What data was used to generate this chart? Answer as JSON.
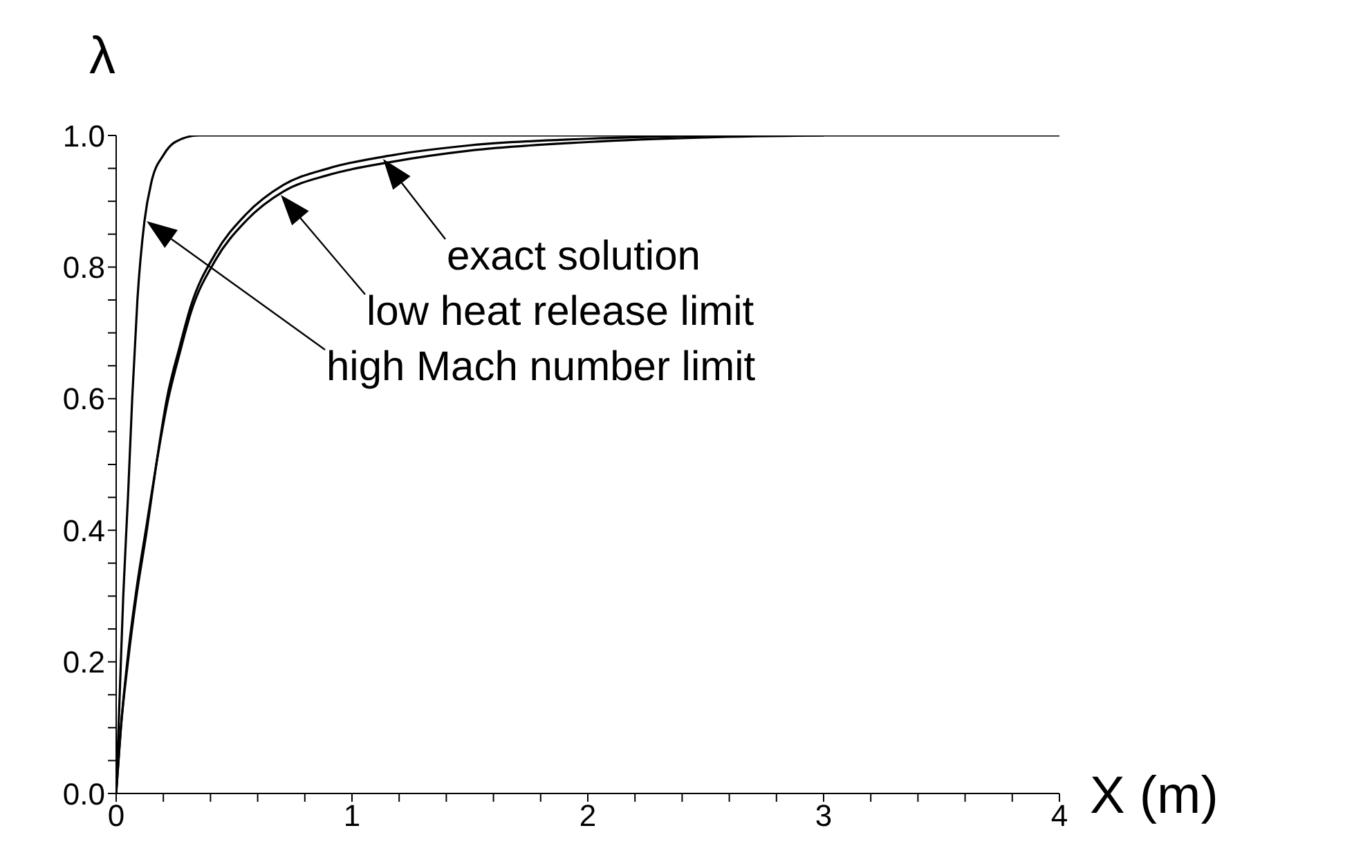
{
  "chart_data": {
    "type": "line",
    "xlabel": "X (m)",
    "ylabel": "λ",
    "xlim": [
      0,
      4
    ],
    "ylim": [
      0,
      1
    ],
    "xticks": [
      0,
      {
        "value": 0.2,
        "label": null
      },
      {
        "value": 0.4,
        "label": null
      },
      {
        "value": 0.6,
        "label": null
      },
      {
        "value": 0.8,
        "label": null
      },
      1,
      {
        "value": 1.2,
        "label": null
      },
      {
        "value": 1.4,
        "label": null
      },
      {
        "value": 1.6,
        "label": null
      },
      {
        "value": 1.8,
        "label": null
      },
      2,
      {
        "value": 2.2,
        "label": null
      },
      {
        "value": 2.4,
        "label": null
      },
      {
        "value": 2.6,
        "label": null
      },
      {
        "value": 2.8,
        "label": null
      },
      3,
      {
        "value": 3.2,
        "label": null
      },
      {
        "value": 3.4,
        "label": null
      },
      {
        "value": 3.6,
        "label": null
      },
      {
        "value": 3.8,
        "label": null
      },
      4
    ],
    "yticks": [
      {
        "value": 0,
        "label": "0.0"
      },
      {
        "value": 0.05,
        "label": null
      },
      {
        "value": 0.1,
        "label": null
      },
      {
        "value": 0.15,
        "label": null
      },
      {
        "value": 0.2,
        "label": "0.2"
      },
      {
        "value": 0.25,
        "label": null
      },
      {
        "value": 0.3,
        "label": null
      },
      {
        "value": 0.35,
        "label": null
      },
      {
        "value": 0.4,
        "label": "0.4"
      },
      {
        "value": 0.45,
        "label": null
      },
      {
        "value": 0.5,
        "label": null
      },
      {
        "value": 0.55,
        "label": null
      },
      {
        "value": 0.6,
        "label": "0.6"
      },
      {
        "value": 0.65,
        "label": null
      },
      {
        "value": 0.7,
        "label": null
      },
      {
        "value": 0.75,
        "label": null
      },
      {
        "value": 0.8,
        "label": "0.8"
      },
      {
        "value": 0.85,
        "label": null
      },
      {
        "value": 0.9,
        "label": null
      },
      {
        "value": 0.95,
        "label": null
      },
      {
        "value": 1,
        "label": "1.0"
      }
    ],
    "marker": "none",
    "line_style": "solid",
    "series": [
      {
        "color": "#000000",
        "x": [
          0,
          0.015,
          0.03,
          0.05,
          0.068,
          0.09,
          0.12,
          0.15,
          0.2,
          0.25,
          0.35,
          4
        ],
        "values": [
          0,
          0.15,
          0.3,
          0.45,
          0.6,
          0.75,
          0.87,
          0.93,
          0.97,
          0.99,
          1,
          1
        ]
      },
      {
        "color": "#000000",
        "x": [
          0,
          0.02,
          0.05,
          0.086,
          0.13,
          0.17,
          0.215,
          0.27,
          0.316,
          0.42,
          0.55,
          0.71,
          0.9,
          1.17,
          1.5,
          2,
          2.5
        ],
        "values": [
          0,
          0.1,
          0.2,
          0.3,
          0.4,
          0.5,
          0.6,
          0.68,
          0.74,
          0.82,
          0.88,
          0.925,
          0.95,
          0.97,
          0.985,
          0.995,
          1
        ]
      },
      {
        "color": "#000000",
        "x": [
          0,
          0.02,
          0.05,
          0.086,
          0.13,
          0.17,
          0.215,
          0.27,
          0.316,
          0.42,
          0.55,
          0.71,
          0.9,
          1.17,
          1.5,
          2,
          2.5,
          3
        ],
        "values": [
          0,
          0.1,
          0.21,
          0.31,
          0.41,
          0.5,
          0.59,
          0.67,
          0.73,
          0.81,
          0.87,
          0.915,
          0.94,
          0.96,
          0.977,
          0.99,
          0.997,
          1
        ]
      }
    ],
    "annotations": [
      "exact solution",
      "low heat release limit",
      "high Mach number limit"
    ]
  }
}
